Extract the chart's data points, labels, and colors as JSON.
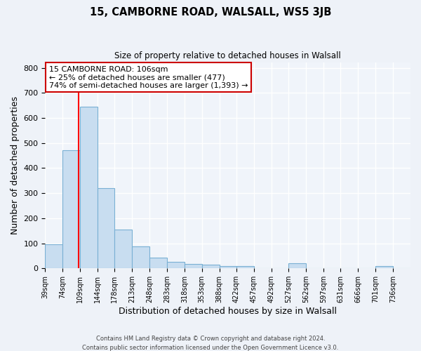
{
  "title": "15, CAMBORNE ROAD, WALSALL, WS5 3JB",
  "subtitle": "Size of property relative to detached houses in Walsall",
  "xlabel": "Distribution of detached houses by size in Walsall",
  "ylabel": "Number of detached properties",
  "bin_labels": [
    "39sqm",
    "74sqm",
    "109sqm",
    "144sqm",
    "178sqm",
    "213sqm",
    "248sqm",
    "283sqm",
    "318sqm",
    "353sqm",
    "388sqm",
    "422sqm",
    "457sqm",
    "492sqm",
    "527sqm",
    "562sqm",
    "597sqm",
    "631sqm",
    "666sqm",
    "701sqm",
    "736sqm"
  ],
  "bin_edges": [
    39,
    74,
    109,
    144,
    178,
    213,
    248,
    283,
    318,
    353,
    388,
    422,
    457,
    492,
    527,
    562,
    597,
    631,
    666,
    701,
    736,
    771
  ],
  "bar_heights": [
    95,
    470,
    645,
    320,
    155,
    88,
    42,
    25,
    18,
    15,
    10,
    10,
    0,
    0,
    20,
    0,
    0,
    0,
    0,
    8,
    0
  ],
  "bar_color": "#c8ddf0",
  "bar_edgecolor": "#7ab0d4",
  "red_line_x": 106,
  "annotation_line1": "15 CAMBORNE ROAD: 106sqm",
  "annotation_line2": "← 25% of detached houses are smaller (477)",
  "annotation_line3": "74% of semi-detached houses are larger (1,393) →",
  "annotation_box_facecolor": "#ffffff",
  "annotation_box_edgecolor": "#cc0000",
  "ylim": [
    0,
    820
  ],
  "yticks": [
    0,
    100,
    200,
    300,
    400,
    500,
    600,
    700,
    800
  ],
  "footer1": "Contains HM Land Registry data © Crown copyright and database right 2024.",
  "footer2": "Contains public sector information licensed under the Open Government Licence v3.0.",
  "fig_bg_color": "#eef2f8",
  "plot_bg_color": "#f0f4fa"
}
